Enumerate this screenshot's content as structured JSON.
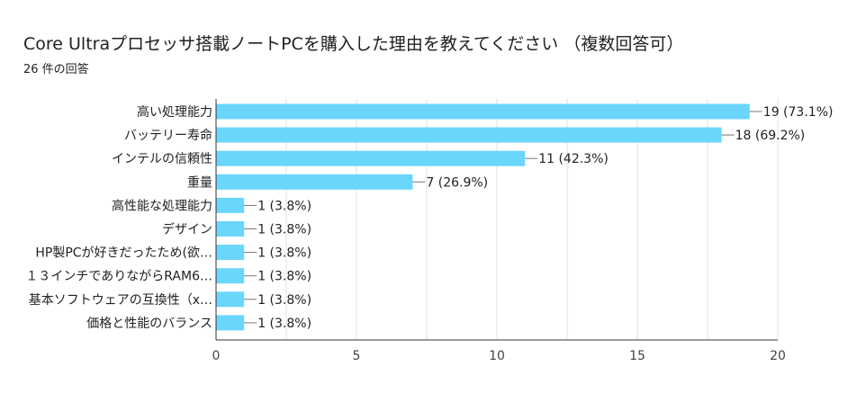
{
  "header": {
    "title": "Core Ultraプロセッサ搭載ノートPCを購入した理由を教えてください （複数回答可）",
    "subtitle": "26 件の回答"
  },
  "colors": {
    "bar": "#6ad6fb",
    "grid": "#e0e0e0",
    "axis": "#333333"
  },
  "chart_data": {
    "type": "bar",
    "orientation": "horizontal",
    "categories": [
      "高い処理能力",
      "バッテリー寿命",
      "インテルの信頼性",
      "重量",
      "高性能な処理能力",
      "デザイン",
      "HP製PCが好きだったため(欲…",
      "１３インチでありながらRAM6…",
      "基本ソフトウェアの互換性（x…",
      "価格と性能のバランス"
    ],
    "values": [
      19,
      18,
      11,
      7,
      1,
      1,
      1,
      1,
      1,
      1
    ],
    "data_labels": [
      "19 (73.1%)",
      "18 (69.2%)",
      "11 (42.3%)",
      "7 (26.9%)",
      "1 (3.8%)",
      "1 (3.8%)",
      "1 (3.8%)",
      "1 (3.8%)",
      "1 (3.8%)",
      "1 (3.8%)"
    ],
    "xlim": [
      0,
      20
    ],
    "xticks": [
      "0",
      "5",
      "10",
      "15",
      "20"
    ],
    "grid": true
  }
}
